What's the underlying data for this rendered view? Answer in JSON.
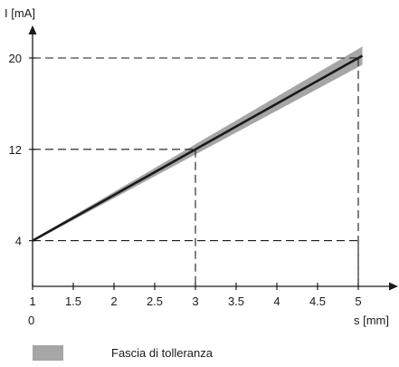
{
  "chart_data": {
    "type": "line",
    "xlabel": "s [mm]",
    "ylabel": "I [mA]",
    "origin_label": "0",
    "xlim": [
      1,
      5.1
    ],
    "ylim": [
      0,
      22.5
    ],
    "x_ticks": [
      {
        "value": 1,
        "label": "1"
      },
      {
        "value": 1.5,
        "label": "1.5"
      },
      {
        "value": 2,
        "label": "2"
      },
      {
        "value": 2.5,
        "label": "2.5"
      },
      {
        "value": 3,
        "label": "3"
      },
      {
        "value": 3.5,
        "label": "3.5"
      },
      {
        "value": 4,
        "label": "4"
      },
      {
        "value": 4.5,
        "label": "4.5"
      },
      {
        "value": 5,
        "label": "5"
      }
    ],
    "y_ticks": [
      {
        "value": 4,
        "label": "4"
      },
      {
        "value": 12,
        "label": "12"
      },
      {
        "value": 20,
        "label": "20"
      }
    ],
    "series": [
      {
        "x": [
          1,
          5.05
        ],
        "y": [
          4,
          20.2
        ]
      }
    ],
    "tolerance_band": {
      "x": [
        1,
        5.05
      ],
      "y_lower": [
        3.9,
        19.4
      ],
      "y_upper": [
        4.1,
        21.0
      ]
    },
    "reference_lines": [
      {
        "x": 3,
        "y": 12
      },
      {
        "x": 5,
        "y": 20
      },
      {
        "x": 5,
        "y": 4
      }
    ],
    "legend": [
      {
        "label": "Fascia di tolleranza",
        "color": "#a6a6a6"
      }
    ],
    "grid": false,
    "colors": {
      "line": "#1a1a1a",
      "band": "#a6a6a6",
      "axis": "#1a1a1a"
    }
  }
}
